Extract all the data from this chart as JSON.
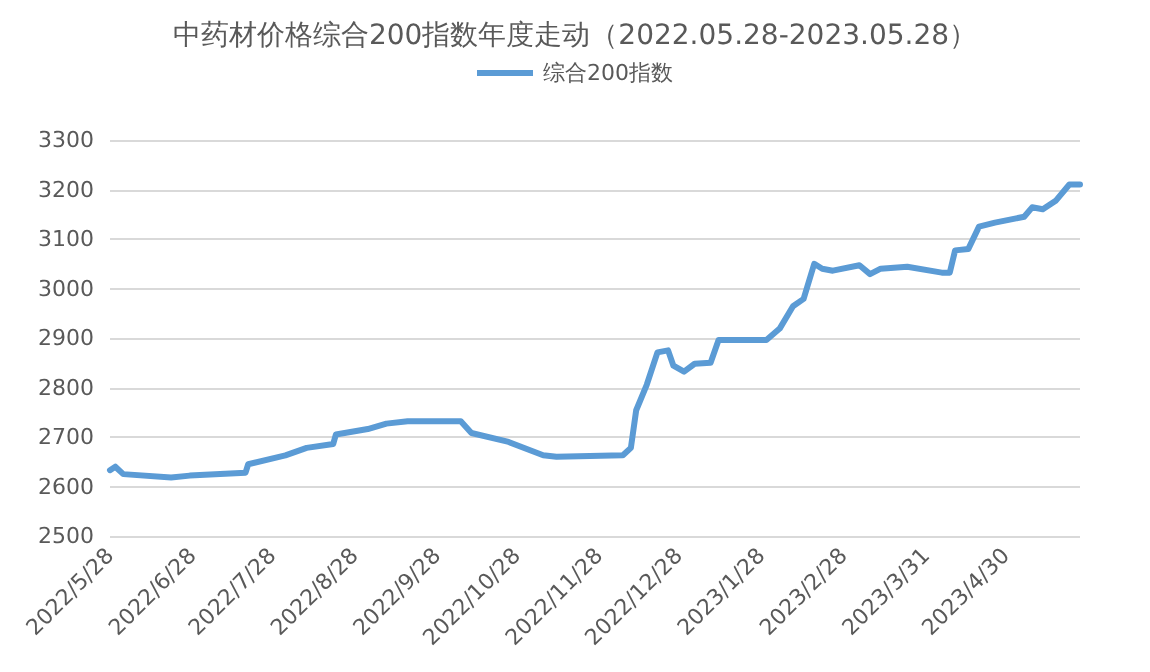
{
  "chart_data": {
    "type": "line",
    "title": "中药材价格综合200指数年度走动（2022.05.28-2023.05.28）",
    "x": [
      "2022-05-28",
      "2022-05-30",
      "2022-06-02",
      "2022-06-20",
      "2022-06-27",
      "2022-07-18",
      "2022-07-19",
      "2022-08-02",
      "2022-08-10",
      "2022-08-20",
      "2022-08-21",
      "2022-09-02",
      "2022-09-09",
      "2022-09-17",
      "2022-10-07",
      "2022-10-11",
      "2022-10-25",
      "2022-11-07",
      "2022-11-12",
      "2022-12-07",
      "2022-12-10",
      "2022-12-12",
      "2022-12-16",
      "2022-12-20",
      "2022-12-24",
      "2022-12-26",
      "2022-12-30",
      "2023-01-03",
      "2023-01-09",
      "2023-01-12",
      "2023-01-30",
      "2023-02-04",
      "2023-02-09",
      "2023-02-13",
      "2023-02-17",
      "2023-02-20",
      "2023-02-24",
      "2023-03-06",
      "2023-03-10",
      "2023-03-14",
      "2023-03-24",
      "2023-04-06",
      "2023-04-09",
      "2023-04-11",
      "2023-04-16",
      "2023-04-20",
      "2023-04-26",
      "2023-05-07",
      "2023-05-10",
      "2023-05-14",
      "2023-05-19",
      "2023-05-24",
      "2023-05-28"
    ],
    "series": [
      {
        "name": "综合200指数",
        "color": "#5b9bd5",
        "values": [
          2633,
          2640,
          2625,
          2618,
          2622,
          2628,
          2645,
          2663,
          2678,
          2686,
          2705,
          2716,
          2727,
          2732,
          2732,
          2708,
          2690,
          2663,
          2660,
          2663,
          2678,
          2754,
          2806,
          2871,
          2875,
          2844,
          2832,
          2848,
          2850,
          2896,
          2896,
          2919,
          2964,
          2979,
          3050,
          3040,
          3036,
          3047,
          3029,
          3040,
          3044,
          3032,
          3032,
          3077,
          3080,
          3125,
          3133,
          3145,
          3164,
          3160,
          3178,
          3210,
          3210
        ]
      }
    ],
    "xlim": [
      "2022-05-28",
      "2023-05-28"
    ],
    "xticks": [
      {
        "value": "2022-05-28",
        "label": "2022/5/28"
      },
      {
        "value": "2022-06-28",
        "label": "2022/6/28"
      },
      {
        "value": "2022-07-28",
        "label": "2022/7/28"
      },
      {
        "value": "2022-08-28",
        "label": "2022/8/28"
      },
      {
        "value": "2022-09-28",
        "label": "2022/9/28"
      },
      {
        "value": "2022-10-28",
        "label": "2022/10/28"
      },
      {
        "value": "2022-11-28",
        "label": "2022/11/28"
      },
      {
        "value": "2022-12-28",
        "label": "2022/12/28"
      },
      {
        "value": "2023-01-28",
        "label": "2023/1/28"
      },
      {
        "value": "2023-02-28",
        "label": "2023/2/28"
      },
      {
        "value": "2023-03-31",
        "label": "2023/3/31"
      },
      {
        "value": "2023-04-30",
        "label": "2023/4/30"
      }
    ],
    "ylim": [
      2500,
      3300
    ],
    "yticks": [
      2500,
      2600,
      2700,
      2800,
      2900,
      3000,
      3100,
      3200,
      3300
    ],
    "grid": "y",
    "legend": "top",
    "marker": "none",
    "line_style": "solid"
  }
}
